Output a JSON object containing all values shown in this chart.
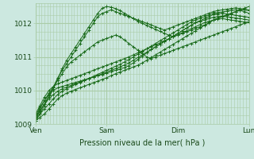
{
  "background_color": "#cce8e0",
  "plot_bg_color": "#cce8e0",
  "line_color": "#1a6b1a",
  "marker_color": "#1a6b1a",
  "grid_color_minor": "#aacca8",
  "grid_color_major": "#88bb88",
  "xlabel": "Pression niveau de la mer( hPa )",
  "xlim": [
    0,
    72
  ],
  "ylim": [
    1009.0,
    1012.6
  ],
  "yticks": [
    1009,
    1010,
    1011,
    1012
  ],
  "xticks": [
    0,
    24,
    48,
    72
  ],
  "xticklabels": [
    "Ven",
    "Sam",
    "Dim",
    "Lun"
  ],
  "series": [
    [
      1009.1,
      1009.2,
      1009.3,
      1009.45,
      1009.6,
      1009.75,
      1009.85,
      1009.92,
      1009.98,
      1010.03,
      1010.08,
      1010.13,
      1010.18,
      1010.23,
      1010.28,
      1010.33,
      1010.38,
      1010.44,
      1010.5,
      1010.55,
      1010.6,
      1010.65,
      1010.7,
      1010.75,
      1010.82,
      1010.9,
      1010.98,
      1011.06,
      1011.14,
      1011.22,
      1011.3,
      1011.38,
      1011.46,
      1011.54,
      1011.62,
      1011.7,
      1011.78,
      1011.86,
      1011.94,
      1012.02,
      1012.1,
      1012.15,
      1012.2,
      1012.25,
      1012.3,
      1012.35,
      1012.38,
      1012.4,
      1012.38
    ],
    [
      1009.15,
      1009.3,
      1009.45,
      1009.6,
      1009.75,
      1009.88,
      1009.98,
      1010.05,
      1010.12,
      1010.18,
      1010.24,
      1010.3,
      1010.36,
      1010.42,
      1010.48,
      1010.54,
      1010.6,
      1010.66,
      1010.72,
      1010.78,
      1010.85,
      1010.92,
      1011.0,
      1011.08,
      1011.16,
      1011.24,
      1011.32,
      1011.4,
      1011.48,
      1011.56,
      1011.64,
      1011.72,
      1011.8,
      1011.88,
      1011.96,
      1012.04,
      1012.1,
      1012.15,
      1012.2,
      1012.25,
      1012.3,
      1012.32,
      1012.34,
      1012.36,
      1012.38,
      1012.4,
      1012.38,
      1012.35,
      1012.3
    ],
    [
      1009.2,
      1009.4,
      1009.6,
      1009.75,
      1009.88,
      1009.98,
      1010.05,
      1010.1,
      1010.15,
      1010.2,
      1010.25,
      1010.3,
      1010.35,
      1010.4,
      1010.45,
      1010.5,
      1010.55,
      1010.6,
      1010.65,
      1010.7,
      1010.76,
      1010.82,
      1010.9,
      1010.98,
      1011.06,
      1011.14,
      1011.22,
      1011.3,
      1011.38,
      1011.46,
      1011.54,
      1011.62,
      1011.7,
      1011.78,
      1011.86,
      1011.94,
      1012.02,
      1012.08,
      1012.14,
      1012.2,
      1012.26,
      1012.28,
      1012.3,
      1012.28,
      1012.26,
      1012.24,
      1012.22,
      1012.2,
      1012.18
    ],
    [
      1009.25,
      1009.5,
      1009.7,
      1009.88,
      1010.0,
      1010.08,
      1010.12,
      1010.16,
      1010.2,
      1010.24,
      1010.28,
      1010.32,
      1010.36,
      1010.4,
      1010.44,
      1010.48,
      1010.52,
      1010.56,
      1010.6,
      1010.64,
      1010.68,
      1010.74,
      1010.82,
      1010.92,
      1011.02,
      1011.12,
      1011.22,
      1011.3,
      1011.38,
      1011.46,
      1011.54,
      1011.62,
      1011.7,
      1011.78,
      1011.86,
      1011.94,
      1012.02,
      1012.06,
      1012.1,
      1012.14,
      1012.18,
      1012.2,
      1012.22,
      1012.2,
      1012.18,
      1012.16,
      1012.14,
      1012.12,
      1012.1
    ],
    [
      1009.3,
      1009.55,
      1009.8,
      1010.0,
      1010.12,
      1010.2,
      1010.25,
      1010.3,
      1010.35,
      1010.4,
      1010.45,
      1010.5,
      1010.55,
      1010.6,
      1010.65,
      1010.7,
      1010.75,
      1010.8,
      1010.85,
      1010.9,
      1010.95,
      1011.0,
      1011.06,
      1011.12,
      1011.18,
      1011.24,
      1011.3,
      1011.36,
      1011.42,
      1011.48,
      1011.54,
      1011.6,
      1011.66,
      1011.72,
      1011.78,
      1011.84,
      1011.9,
      1011.96,
      1012.02,
      1012.06,
      1012.1,
      1012.12,
      1012.14,
      1012.12,
      1012.1,
      1012.08,
      1012.06,
      1012.04,
      1012.02
    ],
    [
      1009.2,
      1009.45,
      1009.7,
      1009.92,
      1010.1,
      1010.3,
      1010.5,
      1010.7,
      1010.85,
      1010.95,
      1011.05,
      1011.15,
      1011.25,
      1011.35,
      1011.45,
      1011.5,
      1011.55,
      1011.6,
      1011.65,
      1011.6,
      1011.5,
      1011.4,
      1011.3,
      1011.2,
      1011.1,
      1011.0,
      1010.95,
      1011.0,
      1011.05,
      1011.1,
      1011.15,
      1011.2,
      1011.25,
      1011.3,
      1011.35,
      1011.4,
      1011.45,
      1011.5,
      1011.55,
      1011.6,
      1011.65,
      1011.7,
      1011.75,
      1011.8,
      1011.85,
      1011.9,
      1011.95,
      1012.0,
      1012.05
    ],
    [
      1009.15,
      1009.38,
      1009.6,
      1009.85,
      1010.1,
      1010.38,
      1010.6,
      1010.8,
      1011.0,
      1011.2,
      1011.4,
      1011.6,
      1011.8,
      1012.0,
      1012.2,
      1012.3,
      1012.35,
      1012.4,
      1012.35,
      1012.3,
      1012.25,
      1012.2,
      1012.15,
      1012.1,
      1012.05,
      1012.0,
      1011.95,
      1011.9,
      1011.85,
      1011.8,
      1011.85,
      1011.9,
      1011.95,
      1012.0,
      1012.05,
      1012.1,
      1012.15,
      1012.2,
      1012.25,
      1012.3,
      1012.35,
      1012.38,
      1012.4,
      1012.42,
      1012.44,
      1012.46,
      1012.44,
      1012.42,
      1012.4
    ],
    [
      1009.1,
      1009.3,
      1009.55,
      1009.8,
      1010.05,
      1010.35,
      1010.65,
      1010.9,
      1011.1,
      1011.3,
      1011.5,
      1011.7,
      1011.9,
      1012.1,
      1012.3,
      1012.45,
      1012.5,
      1012.48,
      1012.44,
      1012.38,
      1012.3,
      1012.22,
      1012.14,
      1012.06,
      1012.0,
      1011.94,
      1011.88,
      1011.82,
      1011.76,
      1011.7,
      1011.65,
      1011.6,
      1011.65,
      1011.7,
      1011.75,
      1011.8,
      1011.85,
      1011.9,
      1011.95,
      1012.0,
      1012.1,
      1012.15,
      1012.2,
      1012.25,
      1012.3,
      1012.35,
      1012.4,
      1012.45,
      1012.5
    ]
  ]
}
